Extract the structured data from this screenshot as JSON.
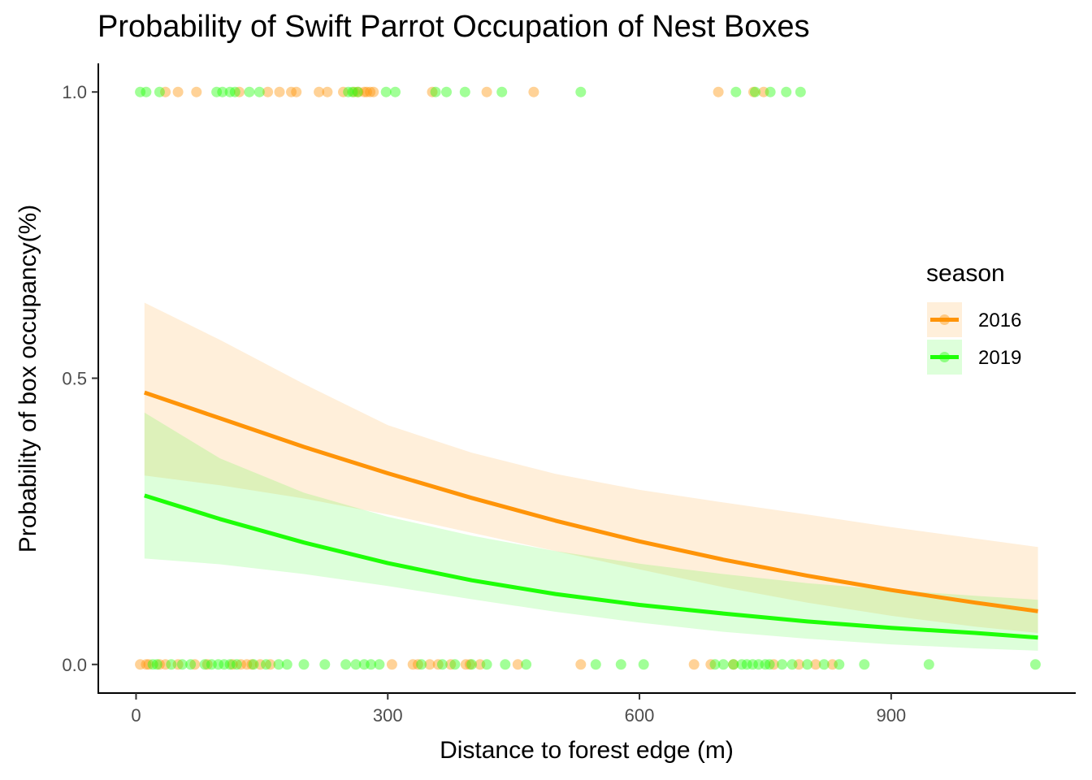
{
  "chart_data": {
    "type": "scatter",
    "title": "Probability of Swift Parrot Occupation of Nest Boxes",
    "xlabel": "Distance to forest edge (m)",
    "ylabel": "Probability of box occupancy(%)",
    "xlim": [
      -45,
      1120
    ],
    "ylim": [
      -0.05,
      1.05
    ],
    "xticks": [
      0,
      300,
      600,
      900
    ],
    "xtick_labels": [
      "0",
      "300",
      "600",
      "900"
    ],
    "yticks": [
      0.0,
      0.5,
      1.0
    ],
    "ytick_labels": [
      "0.0",
      "0.5",
      "1.0"
    ],
    "legend": {
      "title": "season",
      "position": "right"
    },
    "grid": false,
    "series": [
      {
        "name": "2016",
        "color": "#FF9408",
        "points": {
          "y1": [
            35,
            50,
            72,
            123,
            157,
            171,
            185,
            191,
            218,
            228,
            247,
            260,
            265,
            272,
            275,
            279,
            283,
            353,
            418,
            474,
            694,
            736,
            748
          ],
          "y0": [
            5,
            12,
            15,
            28,
            35,
            50,
            70,
            85,
            115,
            125,
            132,
            138,
            148,
            160,
            305,
            330,
            336,
            350,
            360,
            375,
            393,
            398,
            410,
            455,
            530,
            665,
            685,
            712,
            760,
            790,
            810,
            830
          ]
        },
        "fit": {
          "x": [
            10,
            100,
            200,
            300,
            400,
            500,
            600,
            700,
            800,
            900,
            1000,
            1075
          ],
          "y": [
            0.475,
            0.43,
            0.38,
            0.334,
            0.291,
            0.251,
            0.215,
            0.183,
            0.155,
            0.13,
            0.108,
            0.093
          ],
          "lower": [
            0.33,
            0.313,
            0.29,
            0.262,
            0.23,
            0.198,
            0.166,
            0.135,
            0.108,
            0.085,
            0.066,
            0.055
          ],
          "upper": [
            0.632,
            0.567,
            0.49,
            0.418,
            0.37,
            0.333,
            0.305,
            0.283,
            0.262,
            0.24,
            0.22,
            0.205
          ]
        }
      },
      {
        "name": "2019",
        "color": "#1EFF08",
        "points": {
          "y1": [
            5,
            12,
            28,
            96,
            103,
            112,
            118,
            135,
            147,
            253,
            258,
            264,
            298,
            309,
            357,
            370,
            392,
            436,
            530,
            715,
            738,
            756,
            775,
            792
          ],
          "y0": [
            20,
            25,
            42,
            55,
            65,
            82,
            90,
            98,
            105,
            112,
            120,
            140,
            155,
            170,
            180,
            200,
            225,
            250,
            262,
            272,
            280,
            290,
            340,
            365,
            380,
            400,
            418,
            440,
            465,
            548,
            578,
            605,
            690,
            700,
            712,
            722,
            728,
            735,
            742,
            750,
            755,
            770,
            782,
            800,
            820,
            838,
            868,
            945,
            1072
          ]
        },
        "fit": {
          "x": [
            10,
            100,
            200,
            300,
            400,
            500,
            600,
            700,
            800,
            900,
            1000,
            1075
          ],
          "y": [
            0.295,
            0.254,
            0.213,
            0.177,
            0.147,
            0.123,
            0.104,
            0.089,
            0.075,
            0.064,
            0.055,
            0.047
          ],
          "lower": [
            0.185,
            0.175,
            0.158,
            0.137,
            0.114,
            0.092,
            0.073,
            0.057,
            0.045,
            0.035,
            0.028,
            0.024
          ],
          "upper": [
            0.44,
            0.36,
            0.3,
            0.258,
            0.225,
            0.198,
            0.176,
            0.158,
            0.142,
            0.13,
            0.12,
            0.113
          ]
        }
      }
    ]
  }
}
